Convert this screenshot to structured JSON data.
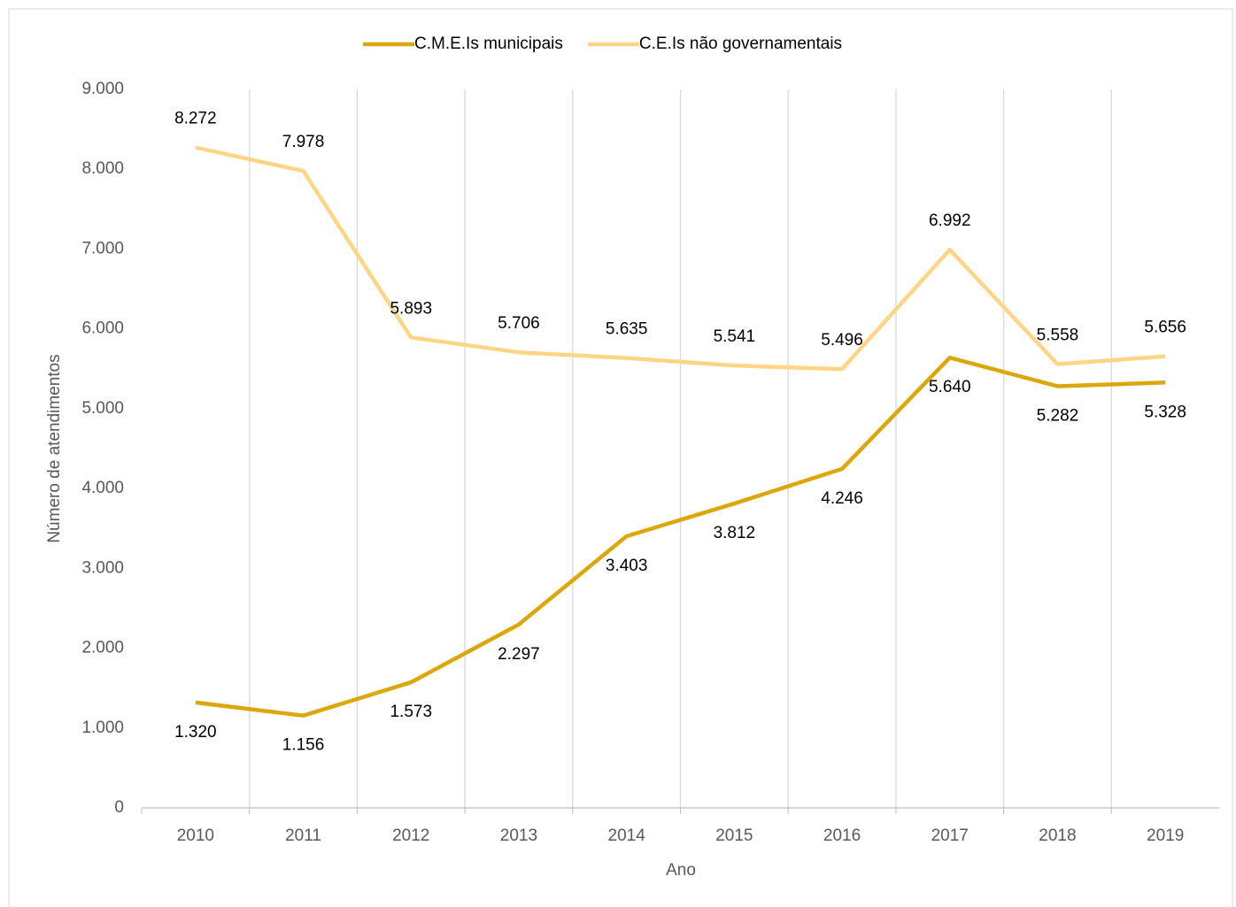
{
  "chart_data": {
    "type": "line",
    "x_label": "Ano",
    "y_label": "Número de atendimentos",
    "categories": [
      "2010",
      "2011",
      "2012",
      "2013",
      "2014",
      "2015",
      "2016",
      "2017",
      "2018",
      "2019"
    ],
    "series": [
      {
        "name": "C.M.E.Is municipais",
        "color": "#dba70b",
        "values": [
          1320,
          1156,
          1573,
          2297,
          3403,
          3812,
          4246,
          5640,
          5282,
          5328
        ],
        "value_labels": [
          "1.320",
          "1.156",
          "1.573",
          "2.297",
          "3.403",
          "3.812",
          "4.246",
          "5.640",
          "5.282",
          "5.328"
        ]
      },
      {
        "name": "C.E.Is não governamentais",
        "color": "#fed585",
        "values": [
          8272,
          7978,
          5893,
          5706,
          5635,
          5541,
          5496,
          6992,
          5558,
          5656
        ],
        "value_labels": [
          "8.272",
          "7.978",
          "5.893",
          "5.706",
          "5.635",
          "5.541",
          "5.496",
          "6.992",
          "5.558",
          "5.656"
        ]
      }
    ],
    "ylim": [
      0,
      9000
    ],
    "yticks": [
      0,
      {
        "value": 1000,
        "label": "1.000"
      },
      {
        "value": 2000,
        "label": "2.000"
      },
      {
        "value": 3000,
        "label": "3.000"
      },
      {
        "value": 4000,
        "label": "4.000"
      },
      {
        "value": 5000,
        "label": "5.000"
      },
      {
        "value": 6000,
        "label": "6.000"
      },
      {
        "value": 7000,
        "label": "7.000"
      },
      {
        "value": 8000,
        "label": "8.000"
      },
      {
        "value": 9000,
        "label": "9.000"
      }
    ],
    "grid": true,
    "legend": "top"
  }
}
